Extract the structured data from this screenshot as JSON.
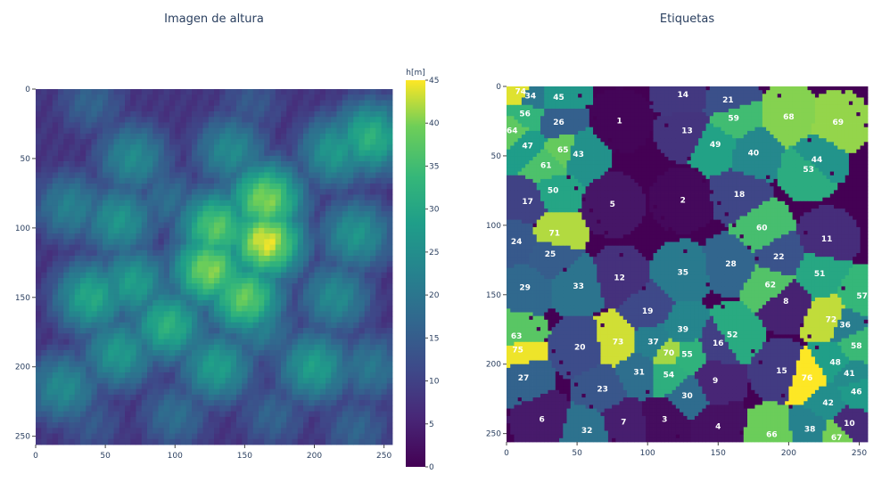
{
  "chart_data": [
    {
      "type": "heatmap",
      "title": "Imagen de altura",
      "colorscale": "viridis",
      "colorbar_title": "h[m]",
      "zlim": [
        0,
        45
      ],
      "colorbar_ticks": [
        "0",
        "5",
        "10",
        "15",
        "20",
        "25",
        "30",
        "35",
        "40",
        "45"
      ],
      "xlim": [
        0,
        256
      ],
      "ylim": [
        256,
        0
      ],
      "x_ticks": [
        "0",
        "50",
        "100",
        "150",
        "200",
        "250"
      ],
      "y_ticks": [
        "0",
        "50",
        "100",
        "150",
        "200",
        "250"
      ],
      "blobs": [
        {
          "x": 40,
          "y": 10,
          "h": 14
        },
        {
          "x": 155,
          "y": 10,
          "h": 12
        },
        {
          "x": 235,
          "y": 20,
          "h": 12
        },
        {
          "x": 70,
          "y": 50,
          "h": 22
        },
        {
          "x": 215,
          "y": 45,
          "h": 25
        },
        {
          "x": 240,
          "y": 35,
          "h": 30
        },
        {
          "x": 140,
          "y": 45,
          "h": 22
        },
        {
          "x": 165,
          "y": 80,
          "h": 38
        },
        {
          "x": 130,
          "y": 100,
          "h": 35
        },
        {
          "x": 165,
          "y": 110,
          "h": 42
        },
        {
          "x": 125,
          "y": 130,
          "h": 38
        },
        {
          "x": 150,
          "y": 150,
          "h": 36
        },
        {
          "x": 95,
          "y": 80,
          "h": 16
        },
        {
          "x": 60,
          "y": 95,
          "h": 24
        },
        {
          "x": 25,
          "y": 85,
          "h": 20
        },
        {
          "x": 230,
          "y": 105,
          "h": 24
        },
        {
          "x": 215,
          "y": 150,
          "h": 22
        },
        {
          "x": 40,
          "y": 150,
          "h": 28
        },
        {
          "x": 70,
          "y": 140,
          "h": 26
        },
        {
          "x": 95,
          "y": 170,
          "h": 30
        },
        {
          "x": 60,
          "y": 190,
          "h": 25
        },
        {
          "x": 20,
          "y": 215,
          "h": 22
        },
        {
          "x": 130,
          "y": 200,
          "h": 26
        },
        {
          "x": 200,
          "y": 200,
          "h": 26
        },
        {
          "x": 160,
          "y": 170,
          "h": 20
        },
        {
          "x": 240,
          "y": 200,
          "h": 18
        },
        {
          "x": 100,
          "y": 235,
          "h": 16
        },
        {
          "x": 170,
          "y": 235,
          "h": 14
        },
        {
          "x": 230,
          "y": 245,
          "h": 14
        },
        {
          "x": 40,
          "y": 240,
          "h": 12
        }
      ],
      "background_h": 8
    },
    {
      "type": "heatmap",
      "title": "Etiquetas",
      "colorscale": "viridis",
      "xlim": [
        0,
        256
      ],
      "ylim": [
        256,
        0
      ],
      "x_ticks": [
        "0",
        "50",
        "100",
        "150",
        "200",
        "250"
      ],
      "y_ticks": [
        "0",
        "50",
        "100",
        "150",
        "200",
        "250"
      ],
      "max_label": 76,
      "segments": [
        {
          "label": "1",
          "x": 80,
          "y": 25
        },
        {
          "label": "2",
          "x": 125,
          "y": 82
        },
        {
          "label": "3",
          "x": 112,
          "y": 240
        },
        {
          "label": "4",
          "x": 150,
          "y": 245
        },
        {
          "label": "5",
          "x": 75,
          "y": 85
        },
        {
          "label": "6",
          "x": 25,
          "y": 240
        },
        {
          "label": "7",
          "x": 83,
          "y": 242
        },
        {
          "label": "8",
          "x": 198,
          "y": 155
        },
        {
          "label": "9",
          "x": 148,
          "y": 212
        },
        {
          "label": "10",
          "x": 243,
          "y": 243
        },
        {
          "label": "11",
          "x": 227,
          "y": 110
        },
        {
          "label": "12",
          "x": 80,
          "y": 138
        },
        {
          "label": "13",
          "x": 128,
          "y": 32
        },
        {
          "label": "14",
          "x": 125,
          "y": 6
        },
        {
          "label": "15",
          "x": 195,
          "y": 205
        },
        {
          "label": "16",
          "x": 150,
          "y": 185
        },
        {
          "label": "17",
          "x": 15,
          "y": 83
        },
        {
          "label": "18",
          "x": 165,
          "y": 78
        },
        {
          "label": "19",
          "x": 100,
          "y": 162
        },
        {
          "label": "20",
          "x": 52,
          "y": 188
        },
        {
          "label": "21",
          "x": 157,
          "y": 10
        },
        {
          "label": "22",
          "x": 193,
          "y": 123
        },
        {
          "label": "23",
          "x": 68,
          "y": 218
        },
        {
          "label": "24",
          "x": 7,
          "y": 112
        },
        {
          "label": "25",
          "x": 31,
          "y": 121
        },
        {
          "label": "26",
          "x": 37,
          "y": 26
        },
        {
          "label": "27",
          "x": 12,
          "y": 210
        },
        {
          "label": "28",
          "x": 159,
          "y": 128
        },
        {
          "label": "29",
          "x": 13,
          "y": 145
        },
        {
          "label": "30",
          "x": 128,
          "y": 223
        },
        {
          "label": "31",
          "x": 94,
          "y": 206
        },
        {
          "label": "32",
          "x": 57,
          "y": 248
        },
        {
          "label": "33",
          "x": 51,
          "y": 144
        },
        {
          "label": "34",
          "x": 17,
          "y": 7
        },
        {
          "label": "35",
          "x": 125,
          "y": 134
        },
        {
          "label": "36",
          "x": 240,
          "y": 172
        },
        {
          "label": "37",
          "x": 104,
          "y": 184
        },
        {
          "label": "38",
          "x": 215,
          "y": 247
        },
        {
          "label": "39",
          "x": 125,
          "y": 175
        },
        {
          "label": "40",
          "x": 175,
          "y": 48
        },
        {
          "label": "41",
          "x": 243,
          "y": 207
        },
        {
          "label": "42",
          "x": 228,
          "y": 228
        },
        {
          "label": "43",
          "x": 51,
          "y": 49
        },
        {
          "label": "44",
          "x": 220,
          "y": 53
        },
        {
          "label": "45",
          "x": 37,
          "y": 8
        },
        {
          "label": "46",
          "x": 248,
          "y": 220
        },
        {
          "label": "47",
          "x": 15,
          "y": 43
        },
        {
          "label": "48",
          "x": 233,
          "y": 199
        },
        {
          "label": "49",
          "x": 148,
          "y": 42
        },
        {
          "label": "50",
          "x": 33,
          "y": 75
        },
        {
          "label": "51",
          "x": 222,
          "y": 135
        },
        {
          "label": "52",
          "x": 160,
          "y": 179
        },
        {
          "label": "53",
          "x": 214,
          "y": 60
        },
        {
          "label": "54",
          "x": 115,
          "y": 208
        },
        {
          "label": "55",
          "x": 128,
          "y": 193
        },
        {
          "label": "56",
          "x": 13,
          "y": 20
        },
        {
          "label": "57",
          "x": 252,
          "y": 151
        },
        {
          "label": "58",
          "x": 248,
          "y": 187
        },
        {
          "label": "59",
          "x": 161,
          "y": 23
        },
        {
          "label": "60",
          "x": 181,
          "y": 102
        },
        {
          "label": "61",
          "x": 28,
          "y": 57
        },
        {
          "label": "62",
          "x": 187,
          "y": 143
        },
        {
          "label": "63",
          "x": 7,
          "y": 180
        },
        {
          "label": "64",
          "x": 4,
          "y": 32
        },
        {
          "label": "65",
          "x": 40,
          "y": 46
        },
        {
          "label": "66",
          "x": 188,
          "y": 251
        },
        {
          "label": "67",
          "x": 234,
          "y": 253
        },
        {
          "label": "68",
          "x": 200,
          "y": 22
        },
        {
          "label": "69",
          "x": 235,
          "y": 26
        },
        {
          "label": "70",
          "x": 115,
          "y": 192
        },
        {
          "label": "71",
          "x": 34,
          "y": 106
        },
        {
          "label": "72",
          "x": 230,
          "y": 168
        },
        {
          "label": "73",
          "x": 79,
          "y": 184
        },
        {
          "label": "74",
          "x": 10,
          "y": 4
        },
        {
          "label": "75",
          "x": 8,
          "y": 190
        },
        {
          "label": "76",
          "x": 213,
          "y": 210
        }
      ]
    }
  ]
}
